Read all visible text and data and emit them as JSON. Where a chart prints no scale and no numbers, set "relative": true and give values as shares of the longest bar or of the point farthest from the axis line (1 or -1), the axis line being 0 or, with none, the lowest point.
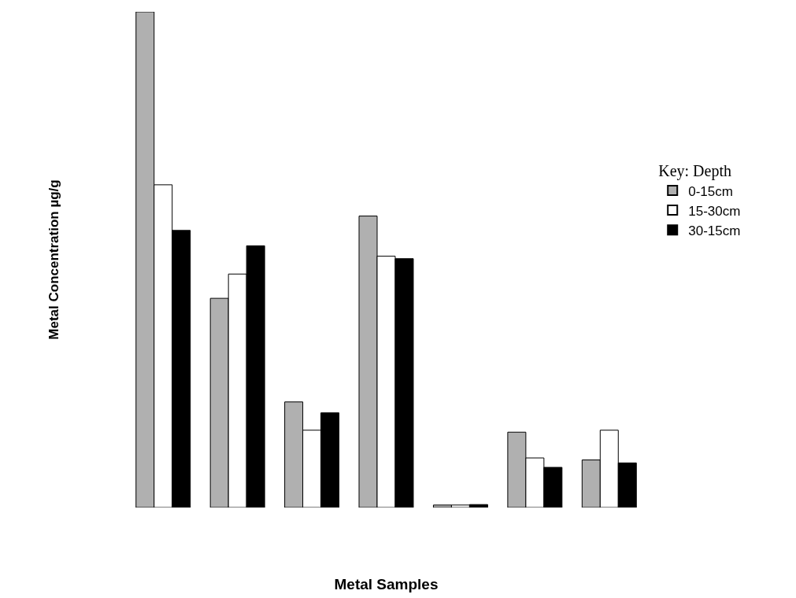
{
  "chart_data": {
    "type": "bar",
    "relative": true,
    "xlabel": "Metal Samples",
    "ylabel": "Metal Concentration µg/g",
    "legend_title": "Key: Depth",
    "legend": "right",
    "categories": [
      null,
      null,
      null,
      null,
      null,
      null,
      null
    ],
    "series": [
      {
        "name": "0-15cm",
        "color": "#b0b0b0",
        "values": [
          1.0,
          0.422,
          0.213,
          0.588,
          0.005,
          0.152,
          0.096
        ]
      },
      {
        "name": "15-30cm",
        "color": "#ffffff",
        "values": [
          0.651,
          0.471,
          0.156,
          0.507,
          0.005,
          0.1,
          0.156
        ]
      },
      {
        "name": "30-15cm",
        "color": "#000000",
        "values": [
          0.559,
          0.528,
          0.191,
          0.502,
          0.006,
          0.081,
          0.09
        ]
      }
    ]
  }
}
